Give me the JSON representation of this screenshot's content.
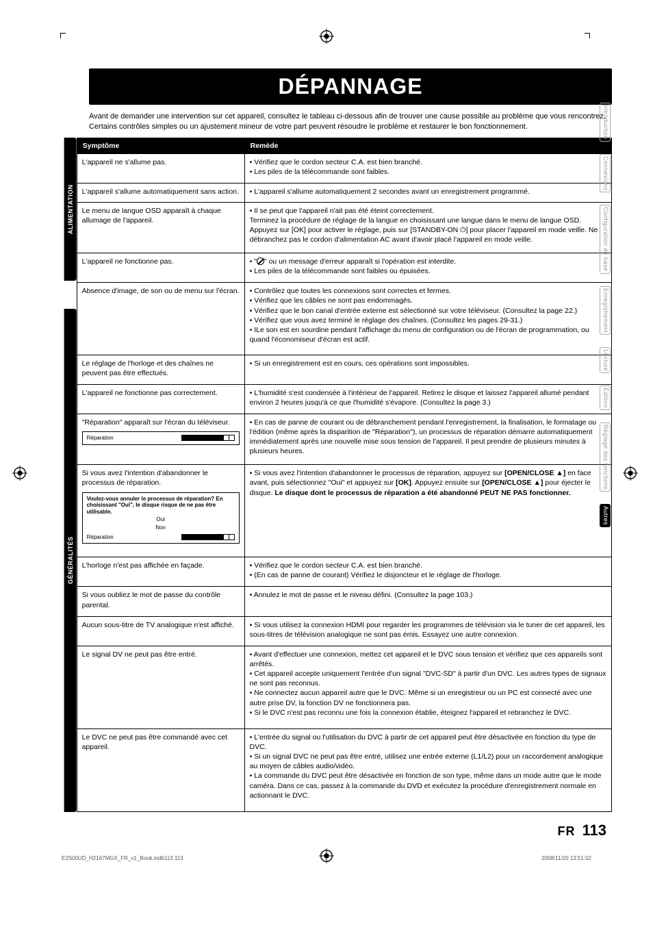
{
  "page": {
    "lang_code": "FR",
    "page_number": "113",
    "title": "DÉPANNAGE",
    "intro": "Avant de demander une intervention sur cet appareil, consultez le tableau ci-dessous afin de trouver une cause possible au problème que vous rencontrez. Certains contrôles simples ou un ajustement mineur de votre part peuvent résoudre le problème et restaurer le bon fonctionnement."
  },
  "headers": {
    "symptom": "Symptôme",
    "remedy": "Remède"
  },
  "section_labels": {
    "power": "ALIMENTATION",
    "general": "GÉNÉRALITÉS"
  },
  "side_tabs": [
    {
      "label": "Introduction",
      "active": false
    },
    {
      "label": "Connexions",
      "active": false
    },
    {
      "label": "Configuration de base",
      "active": false
    },
    {
      "label": "Enregistrement",
      "active": false
    },
    {
      "label": "Lecture",
      "active": false
    },
    {
      "label": "Édition",
      "active": false
    },
    {
      "label": "Réglage des fonctions",
      "active": false
    },
    {
      "label": "Autres",
      "active": true
    }
  ],
  "rows": {
    "r1": {
      "symptom": "L'appareil ne s'allume pas.",
      "remedy": "• Vérifiez que le cordon secteur C.A. est bien branché.\n• Les piles de la télécommande sont faibles."
    },
    "r2": {
      "symptom": "L'appareil s'allume automatiquement sans action.",
      "remedy": "• L'appareil s'allume automatiquement 2 secondes avant un enregistrement programmé."
    },
    "r3": {
      "symptom": "Le menu de langue OSD apparaît à chaque allumage de l'appareil.",
      "remedy": "• Il se peut que l'appareil n'ait pas été éteint correctement.\nTerminez la procédure de réglage de la langue en choisissant une langue dans le menu de langue OSD. Appuyez sur [OK] pour activer le réglage, puis sur [STANDBY-ON ⏻] pour placer l'appareil en mode veille. Ne débranchez pas le cordon d'alimentation AC avant d'avoir placé l'appareil en mode veille."
    },
    "r4": {
      "symptom": "L'appareil ne fonctionne pas.",
      "remedy_prefix": "• \"",
      "remedy_suffix": "\" ou un message d'erreur apparaît si l'opération est interdite.\n• Les piles de la télécommande sont faibles ou épuisées."
    },
    "r5": {
      "symptom": "Absence d'image, de son ou de menu sur l'écran.",
      "remedy": "• Contrôlez que toutes les connexions sont correctes et fermes.\n• Vérifiez que les câbles ne sont pas endommagés.\n• Vérifiez que le bon canal d'entrée externe est sélectionné sur votre téléviseur. (Consultez la page 22.)\n• Vérifiez que vous avez terminé le réglage des chaînes. (Consultez les pages 29-31.)\n• ILe son est en sourdine pendant l'affichage du menu de configuration ou de l'écran de programmation, ou quand l'économiseur d'écran est actif."
    },
    "r6": {
      "symptom": "Le réglage de l'horloge et des chaînes ne peuvent pas être effectués.",
      "remedy": "• Si un enregistrement est en cours, ces opérations sont impossibles."
    },
    "r7": {
      "symptom": "L'appareil ne fonctionne pas correctement.",
      "remedy": "• L'humidité s'est condensée à l'intérieur de l'appareil. Retirez le disque et laissez l'appareil allumé pendant environ 2 heures jusqu'à ce que l'humidité s'évapore. (Consultez la page 3.)"
    },
    "r8": {
      "symptom": "\"Réparation\" apparaît sur l'écran du téléviseur.",
      "remedy": "• En cas de panne de courant ou de débranchement pendant l'enregistrement, la finalisation, le formatage ou l'édition (même après la disparition de \"Réparation\"), un processus de réparation démarre automatiquement immédiatement après une nouvelle mise sous tension de l'appareil. Il peut prendre de plusieurs minutes à plusieurs heures.",
      "box_label": "Réparation"
    },
    "r9": {
      "symptom": "Si vous avez l'intention d'abandonner le processus de réparation.",
      "remedy_html": "• Si vous avez l'intention d'abandonner le processus de réparation, appuyez sur <b>[OPEN/CLOSE <span class='eject'>▲</span>]</b> en face avant, puis sélectionnez \"Oui\" et appuyez sur <b>[OK]</b>. Appuyez ensuite sur <b>[OPEN/CLOSE <span class='eject'>▲</span>]</b> pour éjecter le disque. <b>Le disque dont le processus de réparation a été abandonné PEUT NE PAS fonctionner.</b>",
      "box_text": "Voulez-vous annuler le processus de réparation? En choisissant \"Oui\", le disque risque de ne pas être utilisable.",
      "box_yes": "Oui",
      "box_no": "Non",
      "box_label": "Réparation"
    },
    "r10": {
      "symptom": "L'horloge n'est pas affichée en façade.",
      "remedy": "• Vérifiez que le cordon secteur C.A. est bien branché.\n• (En cas de panne de courant) Vérifiez le disjoncteur et le réglage de l'horloge."
    },
    "r11": {
      "symptom": "Si vous oubliez le mot de passe du contrôle parental.",
      "remedy": "• Annulez le mot de passe et le niveau défini. (Consultez la page 103.)"
    },
    "r12": {
      "symptom": "Aucun sous-titre de TV analogique n'est affiché.",
      "remedy": "• Si vous utilisez la connexion HDMI pour regarder les programmes de télévision via le tuner de cet appareil, les sous-titres de télévision analogique ne sont pas émis. Essayez une autre connexion."
    },
    "r13": {
      "symptom": "Le signal DV ne peut pas être entré.",
      "remedy": "• Avant d'effectuer une connexion, mettez cet appareil et le DVC sous tension et vérifiez que ces appareils sont arrêtés.\n• Cet appareil accepte uniquement l'entrée d'un signal \"DVC-SD\" à partir d'un DVC. Les autres types de signaux ne sont pas reconnus.\n• Ne connectez aucun appareil autre que le DVC. Même si un enregistreur ou un PC est connecté avec une autre prise DV, la fonction DV ne fonctionnera pas.\n• Si le DVC n'est pas reconnu une fois la connexion établie, éteignez l'appareil et rebranchez le DVC."
    },
    "r14": {
      "symptom": "Le DVC ne peut pas être commandé avec cet appareil.",
      "remedy": "• L'entrée du signal ou l'utilisation du DVC à partir de cet appareil peut être désactivée en fonction du type de DVC.\n• Si un signal DVC ne peut pas être entré, utilisez une entrée externe (L1/L2) pour un raccordement analogique au moyen de câbles audio/vidéo.\n• La commande du DVC peut être désactivée en fonction de son type, même dans un mode autre que le mode caméra. Dans ce cas, passez à la commande du DVD et exécutez la procédure d'enregistrement normale en actionnant le DVC."
    }
  },
  "footer": {
    "file": "E2S00UD_H2167MGX_FR_v1_Book.indb113   113",
    "timestamp": "2008/11/20   13:51:02"
  },
  "colors": {
    "black": "#000000",
    "white": "#ffffff",
    "tab_inactive_text": "#999999",
    "tab_border": "#aaaaaa",
    "meta_text": "#555555"
  }
}
